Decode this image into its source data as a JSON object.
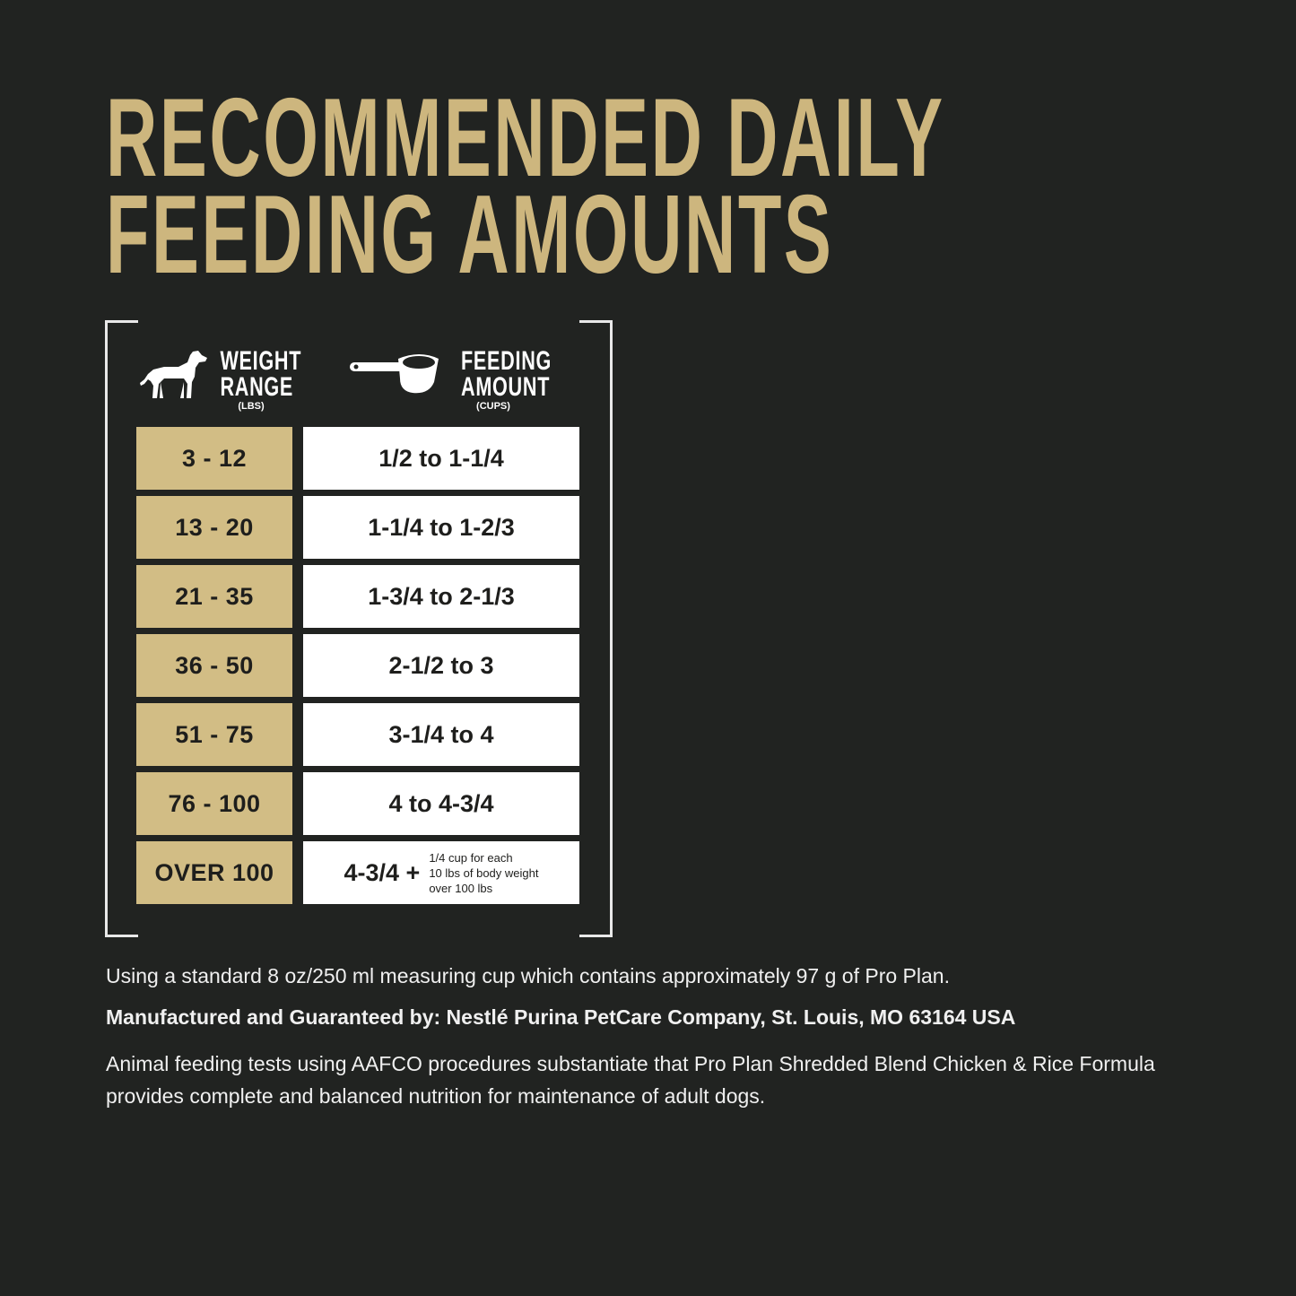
{
  "title": {
    "line1": "RECOMMENDED DAILY",
    "line2": "FEEDING AMOUNTS"
  },
  "colors": {
    "background": "#212321",
    "gold": "#cdb67e",
    "cell_gold": "#d2bd85",
    "cell_white": "#ffffff"
  },
  "table": {
    "weight_header": {
      "icon": "dog-icon",
      "line1": "WEIGHT",
      "line2": "RANGE",
      "unit": "(LBS)"
    },
    "amount_header": {
      "icon": "measuring-cup-icon",
      "line1": "FEEDING",
      "line2": "AMOUNT",
      "unit": "(CUPS)"
    },
    "rows": [
      {
        "weight": "3 - 12",
        "amount": "1/2 to 1-1/4"
      },
      {
        "weight": "13 - 20",
        "amount": "1-1/4 to 1-2/3"
      },
      {
        "weight": "21 - 35",
        "amount": "1-3/4 to 2-1/3"
      },
      {
        "weight": "36 - 50",
        "amount": "2-1/2 to 3"
      },
      {
        "weight": "51 - 75",
        "amount": "3-1/4 to 4"
      },
      {
        "weight": "76 - 100",
        "amount": "4 to 4-3/4"
      },
      {
        "weight": "OVER 100",
        "amount": "4-3/4 +",
        "note_line1": "1/4 cup for each",
        "note_line2": "10 lbs of body weight",
        "note_line3": "over 100 lbs"
      }
    ]
  },
  "footer": {
    "cup_note": "Using a standard 8 oz/250 ml measuring cup which contains approximately 97 g of Pro Plan.",
    "manufacturer": "Manufactured and Guaranteed by: Nestlé Purina PetCare Company, St. Louis, MO 63164 USA",
    "aafco": "Animal feeding tests using AAFCO procedures substantiate that Pro Plan Shredded Blend Chicken & Rice Formula provides complete and balanced nutrition for maintenance of adult dogs."
  }
}
